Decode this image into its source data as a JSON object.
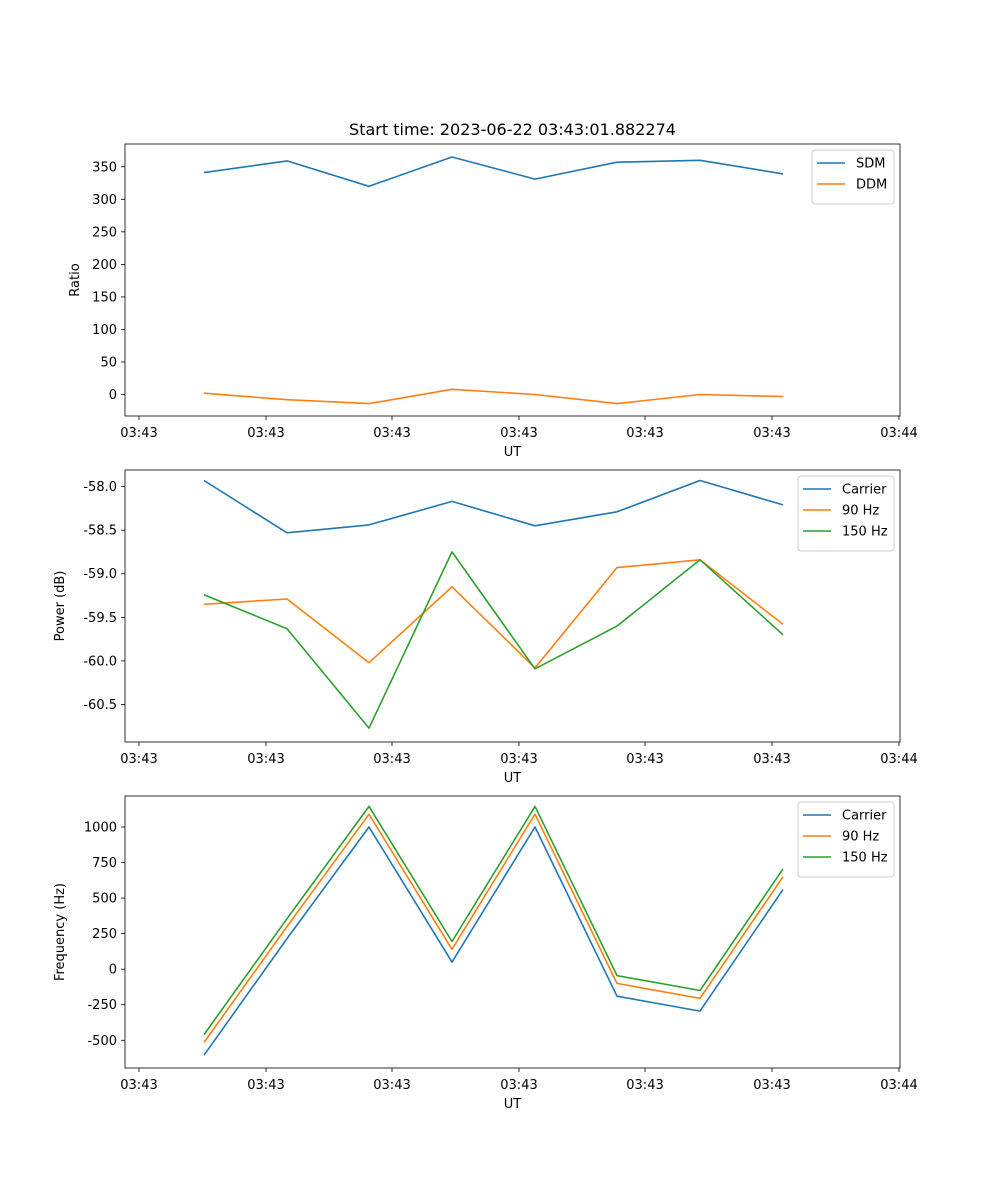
{
  "chart_data": [
    {
      "type": "line",
      "title": "Start time: 2023-06-22 03:43:01.882274",
      "xlabel": "UT",
      "ylabel": "Ratio",
      "x_tick_labels": [
        "03:43",
        "03:43",
        "03:43",
        "03:43",
        "03:43",
        "03:43",
        "03:43"
      ],
      "x_tick_label_end": "03:44",
      "y_ticks": [
        0,
        50,
        100,
        150,
        200,
        250,
        300,
        350
      ],
      "ylim": [
        -33,
        385
      ],
      "grid": false,
      "legend_position": "top-right",
      "series": [
        {
          "name": "SDM",
          "color": "#1f77b4",
          "values": [
            341,
            359,
            320,
            365,
            331,
            357,
            360,
            339
          ]
        },
        {
          "name": "DDM",
          "color": "#ff7f0e",
          "values": [
            2,
            -8,
            -14,
            8,
            0,
            -14,
            0,
            -3
          ]
        }
      ]
    },
    {
      "type": "line",
      "title": "",
      "xlabel": "UT",
      "ylabel": "Power (dB)",
      "x_tick_labels": [
        "03:43",
        "03:43",
        "03:43",
        "03:43",
        "03:43",
        "03:43",
        "03:43"
      ],
      "x_tick_label_end": "03:44",
      "y_ticks": [
        -60.5,
        -60.0,
        -59.5,
        -59.0,
        -58.5,
        -58.0
      ],
      "ylim": [
        -60.93,
        -57.81
      ],
      "grid": false,
      "legend_position": "top-right",
      "series": [
        {
          "name": "Carrier",
          "color": "#1f77b4",
          "values": [
            -57.93,
            -58.53,
            -58.44,
            -58.17,
            -58.45,
            -58.29,
            -57.93,
            -58.21
          ]
        },
        {
          "name": "90 Hz",
          "color": "#ff7f0e",
          "values": [
            -59.35,
            -59.29,
            -60.02,
            -59.15,
            -60.08,
            -58.93,
            -58.84,
            -59.58
          ]
        },
        {
          "name": "150 Hz",
          "color": "#2ca02c",
          "values": [
            -59.24,
            -59.63,
            -60.77,
            -58.75,
            -60.09,
            -59.6,
            -58.84,
            -59.7
          ]
        }
      ]
    },
    {
      "type": "line",
      "title": "",
      "xlabel": "UT",
      "ylabel": "Frequency (Hz)",
      "x_tick_labels": [
        "03:43",
        "03:43",
        "03:43",
        "03:43",
        "03:43",
        "03:43",
        "03:43"
      ],
      "x_tick_label_end": "03:44",
      "y_ticks": [
        -500,
        -250,
        0,
        250,
        500,
        750,
        1000
      ],
      "ylim": [
        -695,
        1218
      ],
      "grid": false,
      "legend_position": "top-right",
      "series": [
        {
          "name": "Carrier",
          "color": "#1f77b4",
          "values": [
            -605,
            215,
            1000,
            50,
            1000,
            -190,
            -295,
            560
          ]
        },
        {
          "name": "90 Hz",
          "color": "#ff7f0e",
          "values": [
            -515,
            300,
            1090,
            140,
            1090,
            -100,
            -205,
            650
          ]
        },
        {
          "name": "150 Hz",
          "color": "#2ca02c",
          "values": [
            -460,
            355,
            1145,
            195,
            1145,
            -45,
            -150,
            705
          ]
        }
      ]
    }
  ]
}
